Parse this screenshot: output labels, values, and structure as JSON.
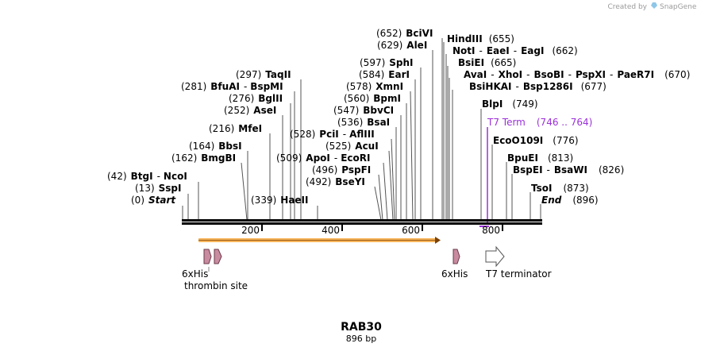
{
  "credit": {
    "prefix": "Created by",
    "brand": "SnapGene"
  },
  "sequence": {
    "name": "RAB30",
    "length_label": "896 bp",
    "length": 896
  },
  "ruler": {
    "ticks": [
      {
        "label": "200",
        "pos": 200
      },
      {
        "label": "400",
        "pos": 400
      },
      {
        "label": "600",
        "pos": 600
      },
      {
        "label": "800",
        "pos": 800
      }
    ]
  },
  "sites": [
    {
      "id": "start",
      "pos": 0,
      "items": [
        {
          "t": "(0)"
        },
        {
          "t": "Start",
          "s": "it"
        }
      ]
    },
    {
      "id": "sspi",
      "pos": 13,
      "items": [
        {
          "t": "(13)"
        },
        {
          "t": "SspI",
          "s": "b"
        }
      ]
    },
    {
      "id": "btgi",
      "pos": 42,
      "items": [
        {
          "t": "(42)"
        },
        {
          "t": "BtgI",
          "s": "b"
        },
        {
          "t": "-"
        },
        {
          "t": "NcoI",
          "s": "b"
        }
      ]
    },
    {
      "id": "bmgbi",
      "pos": 162,
      "items": [
        {
          "t": "(162)"
        },
        {
          "t": "BmgBI",
          "s": "b"
        }
      ]
    },
    {
      "id": "bbsi",
      "pos": 164,
      "items": [
        {
          "t": "(164)"
        },
        {
          "t": "BbsI",
          "s": "b"
        }
      ]
    },
    {
      "id": "mfei",
      "pos": 216,
      "items": [
        {
          "t": "(216)"
        },
        {
          "t": "MfeI",
          "s": "b"
        }
      ]
    },
    {
      "id": "asei",
      "pos": 252,
      "items": [
        {
          "t": "(252)"
        },
        {
          "t": "AseI",
          "s": "b"
        }
      ]
    },
    {
      "id": "bglii",
      "pos": 276,
      "items": [
        {
          "t": "(276)"
        },
        {
          "t": "BglII",
          "s": "b"
        }
      ]
    },
    {
      "id": "bfuai",
      "pos": 281,
      "items": [
        {
          "t": "(281)"
        },
        {
          "t": "BfuAI",
          "s": "b"
        },
        {
          "t": "-"
        },
        {
          "t": "BspMI",
          "s": "b"
        }
      ]
    },
    {
      "id": "taqii",
      "pos": 297,
      "items": [
        {
          "t": "(297)"
        },
        {
          "t": "TaqII",
          "s": "b"
        }
      ]
    },
    {
      "id": "haeii",
      "pos": 339,
      "items": [
        {
          "t": "(339)"
        },
        {
          "t": "HaeII",
          "s": "b"
        }
      ]
    },
    {
      "id": "bseyi",
      "pos": 492,
      "items": [
        {
          "t": "(492)"
        },
        {
          "t": "BseYI",
          "s": "b"
        }
      ]
    },
    {
      "id": "pspfi",
      "pos": 496,
      "items": [
        {
          "t": "(496)"
        },
        {
          "t": "PspFI",
          "s": "b"
        }
      ]
    },
    {
      "id": "apoi",
      "pos": 509,
      "items": [
        {
          "t": "(509)"
        },
        {
          "t": "ApoI",
          "s": "b"
        },
        {
          "t": "-"
        },
        {
          "t": "EcoRI",
          "s": "b"
        }
      ]
    },
    {
      "id": "acui",
      "pos": 525,
      "items": [
        {
          "t": "(525)"
        },
        {
          "t": "AcuI",
          "s": "b"
        }
      ]
    },
    {
      "id": "pcii",
      "pos": 528,
      "items": [
        {
          "t": "(528)"
        },
        {
          "t": "PciI",
          "s": "b"
        },
        {
          "t": "-"
        },
        {
          "t": "AflIII",
          "s": "b"
        }
      ]
    },
    {
      "id": "bsai",
      "pos": 536,
      "items": [
        {
          "t": "(536)"
        },
        {
          "t": "BsaI",
          "s": "b"
        }
      ]
    },
    {
      "id": "bbvci",
      "pos": 547,
      "items": [
        {
          "t": "(547)"
        },
        {
          "t": "BbvCI",
          "s": "b"
        }
      ]
    },
    {
      "id": "bpmi",
      "pos": 560,
      "items": [
        {
          "t": "(560)"
        },
        {
          "t": "BpmI",
          "s": "b"
        }
      ]
    },
    {
      "id": "xmni",
      "pos": 578,
      "items": [
        {
          "t": "(578)"
        },
        {
          "t": "XmnI",
          "s": "b"
        }
      ]
    },
    {
      "id": "eari",
      "pos": 584,
      "items": [
        {
          "t": "(584)"
        },
        {
          "t": "EarI",
          "s": "b"
        }
      ]
    },
    {
      "id": "sphi",
      "pos": 597,
      "items": [
        {
          "t": "(597)"
        },
        {
          "t": "SphI",
          "s": "b"
        }
      ]
    },
    {
      "id": "alei",
      "pos": 629,
      "items": [
        {
          "t": "(629)"
        },
        {
          "t": "AleI",
          "s": "b"
        }
      ]
    },
    {
      "id": "bcivi",
      "pos": 652,
      "items": [
        {
          "t": "(652)"
        },
        {
          "t": "BciVI",
          "s": "b"
        }
      ]
    },
    {
      "id": "hindiii",
      "pos": 655,
      "items": [
        {
          "t": "HindIII",
          "s": "b"
        },
        {
          "t": "(655)"
        }
      ]
    },
    {
      "id": "noti",
      "pos": 662,
      "items": [
        {
          "t": "NotI",
          "s": "b"
        },
        {
          "t": "-"
        },
        {
          "t": "EaeI",
          "s": "b"
        },
        {
          "t": "-"
        },
        {
          "t": "EagI",
          "s": "b"
        },
        {
          "t": "(662)"
        }
      ]
    },
    {
      "id": "bsiei",
      "pos": 665,
      "items": [
        {
          "t": "BsiEI",
          "s": "b"
        },
        {
          "t": "(665)"
        }
      ]
    },
    {
      "id": "avai",
      "pos": 670,
      "items": [
        {
          "t": "AvaI",
          "s": "b"
        },
        {
          "t": "-"
        },
        {
          "t": "XhoI",
          "s": "b"
        },
        {
          "t": "-"
        },
        {
          "t": "BsoBI",
          "s": "b"
        },
        {
          "t": "-"
        },
        {
          "t": "PspXI",
          "s": "b"
        },
        {
          "t": "-"
        },
        {
          "t": "PaeR7I",
          "s": "b"
        },
        {
          "t": "(670)"
        }
      ]
    },
    {
      "id": "bsihkai",
      "pos": 677,
      "items": [
        {
          "t": "BsiHKAI",
          "s": "b"
        },
        {
          "t": "-"
        },
        {
          "t": "Bsp1286I",
          "s": "b"
        },
        {
          "t": "(677)"
        }
      ]
    },
    {
      "id": "blpi",
      "pos": 749,
      "items": [
        {
          "t": "BlpI",
          "s": "b"
        },
        {
          "t": "(749)"
        }
      ]
    },
    {
      "id": "t7term",
      "pos": 746,
      "items": [
        {
          "t": "T7 Term"
        },
        {
          "t": "(746 .. 764)"
        }
      ]
    },
    {
      "id": "ecoo109i",
      "pos": 776,
      "items": [
        {
          "t": "EcoO109I",
          "s": "b"
        },
        {
          "t": "(776)"
        }
      ]
    },
    {
      "id": "bpuei",
      "pos": 813,
      "items": [
        {
          "t": "BpuEI",
          "s": "b"
        },
        {
          "t": "(813)"
        }
      ]
    },
    {
      "id": "bspei",
      "pos": 826,
      "items": [
        {
          "t": "BspEI",
          "s": "b"
        },
        {
          "t": "-"
        },
        {
          "t": "BsaWI",
          "s": "b"
        },
        {
          "t": "(826)"
        }
      ]
    },
    {
      "id": "tsoi",
      "pos": 873,
      "items": [
        {
          "t": "TsoI",
          "s": "b"
        },
        {
          "t": "(873)"
        }
      ]
    },
    {
      "id": "end",
      "pos": 896,
      "items": [
        {
          "t": "End",
          "s": "it"
        },
        {
          "t": "(896)"
        }
      ]
    }
  ],
  "features": [
    {
      "id": "6xhis-1",
      "label": "6xHis",
      "type": "tag"
    },
    {
      "id": "thrombin",
      "label": "thrombin site",
      "type": "site"
    },
    {
      "id": "6xhis-2",
      "label": "6xHis",
      "type": "tag"
    },
    {
      "id": "t7-terminator",
      "label": "T7 terminator",
      "type": "terminator"
    }
  ],
  "orf": {
    "start": 42,
    "end": 644
  },
  "colors": {
    "accent": "#9b30d9",
    "orf": "#f7b55a",
    "tag": "#c98ba0",
    "backbone": "#000000"
  }
}
